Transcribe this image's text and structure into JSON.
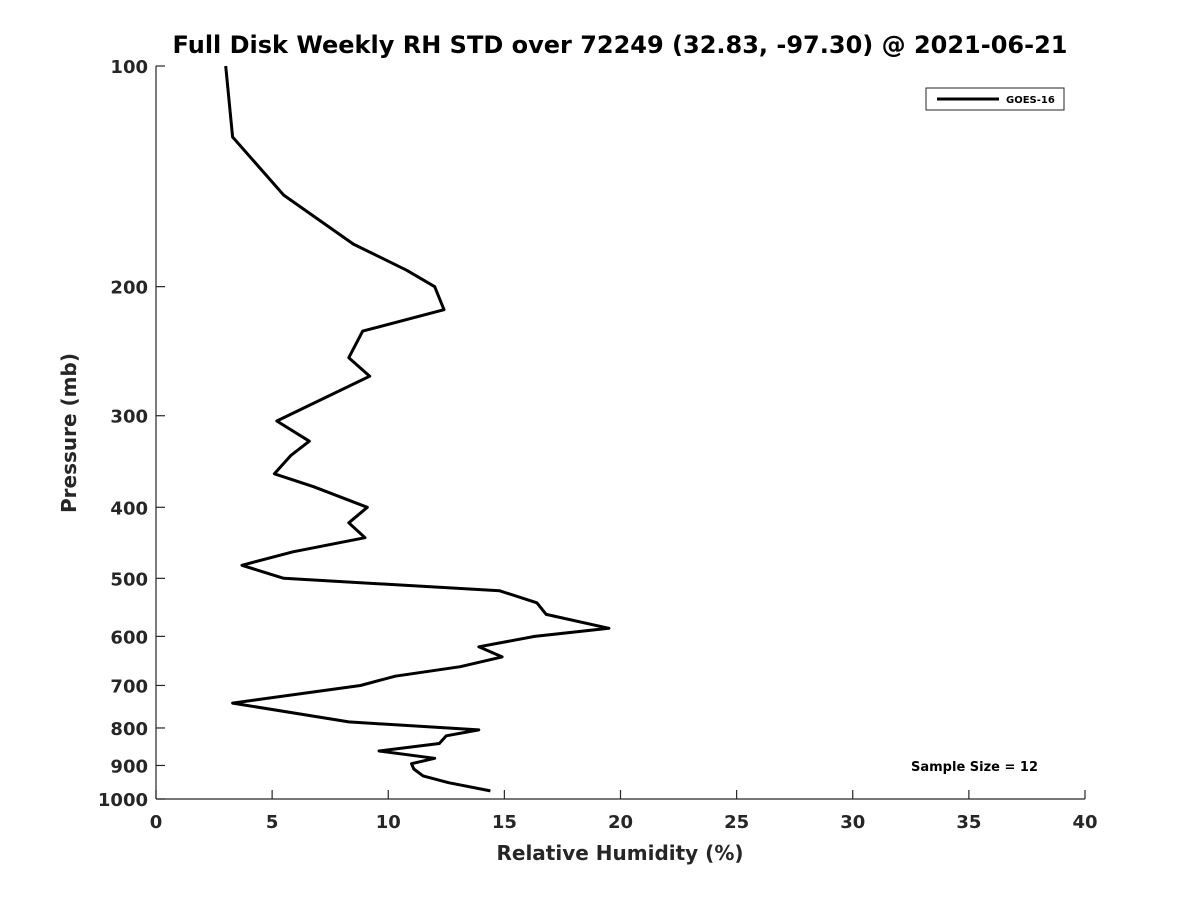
{
  "chart_data": {
    "type": "line",
    "title": "Full Disk Weekly RH STD over 72249 (32.83, -97.30) @ 2021-06-21",
    "xlabel": "Relative Humidity (%)",
    "ylabel": "Pressure (mb)",
    "xlim": [
      0,
      40
    ],
    "ylim": [
      100,
      1000
    ],
    "y_scale": "log",
    "y_reversed": true,
    "x_ticks": [
      "0",
      "5",
      "10",
      "15",
      "20",
      "25",
      "30",
      "35",
      "40"
    ],
    "y_ticks": [
      "100",
      "200",
      "300",
      "400",
      "500",
      "600",
      "700",
      "800",
      "900",
      "1000"
    ],
    "grid": false,
    "legend": {
      "position": "top-right",
      "entries": [
        "GOES-16"
      ]
    },
    "annotation": "Sample Size = 12",
    "series": [
      {
        "name": "GOES-16",
        "color": "#000000",
        "points": [
          [
            3.0,
            100
          ],
          [
            3.3,
            125
          ],
          [
            5.5,
            150
          ],
          [
            8.5,
            175
          ],
          [
            10.8,
            190
          ],
          [
            12.0,
            200
          ],
          [
            12.4,
            215
          ],
          [
            8.9,
            230
          ],
          [
            8.3,
            250
          ],
          [
            9.2,
            265
          ],
          [
            5.2,
            305
          ],
          [
            6.6,
            325
          ],
          [
            5.8,
            340
          ],
          [
            5.1,
            360
          ],
          [
            6.8,
            375
          ],
          [
            9.1,
            400
          ],
          [
            8.3,
            420
          ],
          [
            9.0,
            440
          ],
          [
            5.9,
            460
          ],
          [
            3.7,
            480
          ],
          [
            5.5,
            500
          ],
          [
            14.8,
            520
          ],
          [
            16.4,
            540
          ],
          [
            16.8,
            560
          ],
          [
            19.5,
            585
          ],
          [
            16.3,
            600
          ],
          [
            13.9,
            620
          ],
          [
            14.9,
            640
          ],
          [
            13.1,
            660
          ],
          [
            10.3,
            680
          ],
          [
            8.8,
            700
          ],
          [
            3.3,
            740
          ],
          [
            8.3,
            785
          ],
          [
            13.9,
            805
          ],
          [
            12.5,
            820
          ],
          [
            12.2,
            840
          ],
          [
            9.6,
            860
          ],
          [
            12.0,
            880
          ],
          [
            11.0,
            895
          ],
          [
            11.1,
            910
          ],
          [
            11.5,
            930
          ],
          [
            12.6,
            950
          ],
          [
            14.4,
            975
          ]
        ]
      }
    ]
  }
}
